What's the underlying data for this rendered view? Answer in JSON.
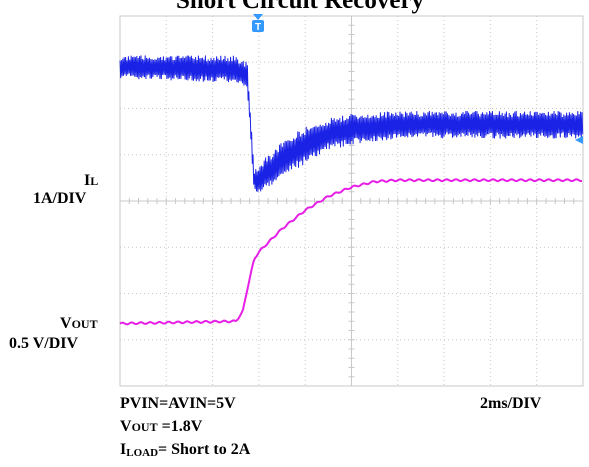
{
  "title": "Short Circuit Recovery",
  "labels": {
    "il_main": "I",
    "il_sub": "L",
    "il_scale": "1A/DIV",
    "vout_main": "V",
    "vout_sub": "OUT",
    "vout_scale": "0.5 V/DIV",
    "time_scale": "2ms/DIV"
  },
  "conditions": {
    "line1": "PVIN=AVIN=5V",
    "line2_main": "V",
    "line2_sub": "OUT",
    "line2_rest": " =1.8V",
    "line3_main": "I",
    "line3_sub": "LOAD",
    "line3_rest": "= Short to 2A"
  },
  "markers": {
    "trigger": "T"
  },
  "colors": {
    "il_trace": "#1a22e6",
    "vout_trace": "#e61ee6",
    "grid": "#c8c8c8",
    "marker": "#3399ff"
  },
  "chart_data": {
    "type": "line",
    "x_unit": "ms",
    "xlim": [
      0,
      20
    ],
    "ylim_divs": [
      0,
      8
    ],
    "grid": true,
    "series": [
      {
        "name": "IL",
        "scale": "1A/DIV",
        "x": [
          0,
          5.0,
          5.5,
          5.8,
          6.2,
          7,
          8,
          9,
          10,
          12,
          14,
          16,
          18,
          20
        ],
        "y": [
          6.9,
          6.85,
          6.7,
          4.4,
          4.55,
          4.9,
          5.2,
          5.45,
          5.55,
          5.65,
          5.65,
          5.65,
          5.65,
          5.65
        ],
        "ripple": [
          0.25,
          0.3,
          0.3,
          0.25,
          0.35,
          0.4,
          0.4,
          0.35,
          0.35,
          0.3,
          0.3,
          0.3,
          0.3,
          0.3
        ]
      },
      {
        "name": "VOUT",
        "scale": "0.5 V/DIV",
        "x": [
          0,
          5.0,
          5.3,
          5.5,
          5.8,
          6.0,
          7,
          8,
          9,
          10,
          11,
          12,
          14,
          16,
          18,
          20
        ],
        "y": [
          1.35,
          1.4,
          1.6,
          2.1,
          2.75,
          2.9,
          3.4,
          3.8,
          4.1,
          4.3,
          4.42,
          4.45,
          4.45,
          4.45,
          4.45,
          4.45
        ]
      }
    ]
  }
}
